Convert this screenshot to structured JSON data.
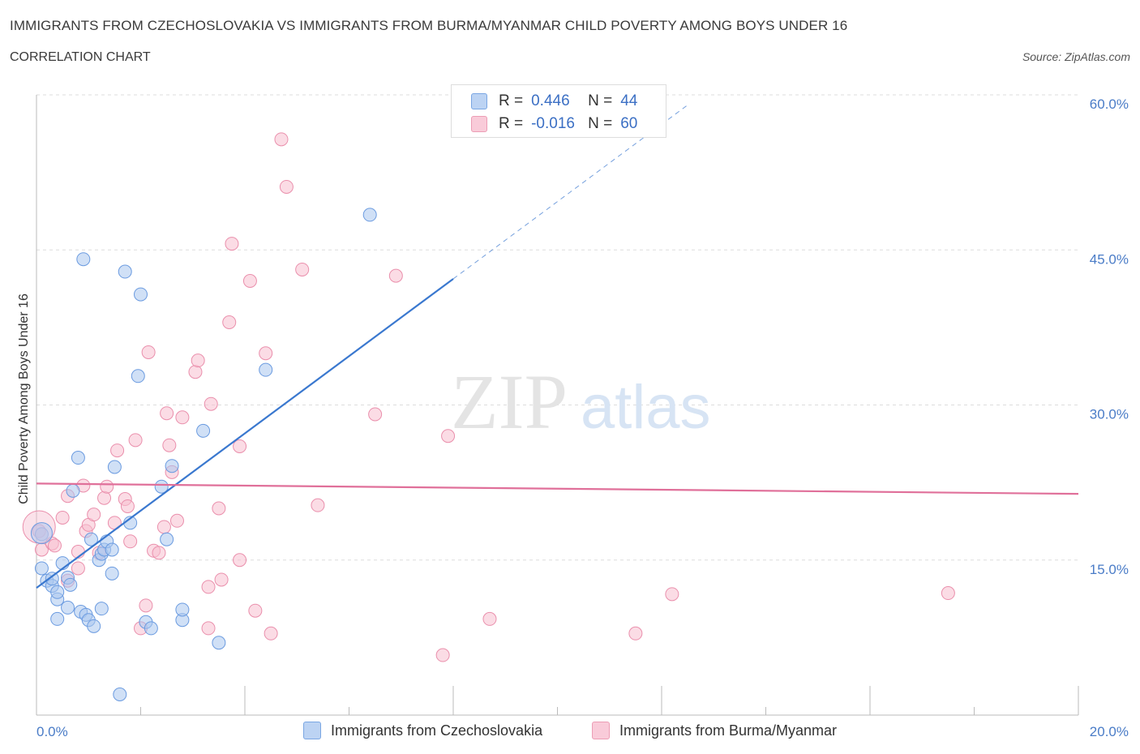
{
  "header": {
    "title": "IMMIGRANTS FROM CZECHOSLOVAKIA VS IMMIGRANTS FROM BURMA/MYANMAR CHILD POVERTY AMONG BOYS UNDER 16",
    "subtitle": "CORRELATION CHART",
    "source": "Source: ZipAtlas.com"
  },
  "legend": {
    "rows": [
      {
        "r_label": "R =",
        "r_value": "0.446",
        "n_label": "N =",
        "n_value": "44"
      },
      {
        "r_label": "R =",
        "r_value": "-0.016",
        "n_label": "N =",
        "n_value": "60"
      }
    ]
  },
  "bottom_legend": {
    "series1": "Immigrants from Czechoslovakia",
    "series2": "Immigrants from Burma/Myanmar"
  },
  "colors": {
    "blue_fill": "#a9c6ef",
    "blue_stroke": "#6b9be0",
    "blue_line": "#3a78cf",
    "pink_fill": "#f7bfd0",
    "pink_stroke": "#ea8fac",
    "pink_line": "#e0709a",
    "grid": "#dddddd",
    "tick_label": "#4a7cc7"
  },
  "watermark": {
    "zip": "ZIP",
    "atlas": "atlas"
  },
  "chart_data": {
    "type": "scatter",
    "ylabel": "Child Poverty Among Boys Under 16",
    "xlim": [
      0,
      20
    ],
    "ylim": [
      0,
      60
    ],
    "x_tick_labels": [
      {
        "v": 0,
        "t": "0.0%"
      },
      {
        "v": 20,
        "t": "20.0%"
      }
    ],
    "y_tick_labels": [
      {
        "v": 15,
        "t": "15.0%"
      },
      {
        "v": 30,
        "t": "30.0%"
      },
      {
        "v": 45,
        "t": "45.0%"
      },
      {
        "v": 60,
        "t": "60.0%"
      }
    ],
    "series": [
      {
        "name": "Immigrants from Czechoslovakia",
        "trend": {
          "x": [
            0.0,
            8.0
          ],
          "y": [
            12.3,
            42.2
          ],
          "dash_to_x": 12.5
        },
        "points": [
          [
            0.1,
            17.5
          ],
          [
            0.1,
            14.2
          ],
          [
            0.2,
            13.0
          ],
          [
            0.3,
            12.5
          ],
          [
            0.3,
            13.2
          ],
          [
            0.4,
            11.2
          ],
          [
            0.4,
            11.9
          ],
          [
            0.4,
            9.3
          ],
          [
            0.5,
            14.7
          ],
          [
            0.6,
            10.4
          ],
          [
            0.6,
            13.3
          ],
          [
            0.65,
            12.6
          ],
          [
            0.7,
            21.7
          ],
          [
            0.8,
            24.9
          ],
          [
            0.85,
            10.0
          ],
          [
            0.9,
            44.1
          ],
          [
            0.95,
            9.7
          ],
          [
            1.0,
            9.2
          ],
          [
            1.05,
            17.0
          ],
          [
            1.1,
            8.6
          ],
          [
            1.2,
            15.0
          ],
          [
            1.25,
            15.6
          ],
          [
            1.25,
            10.3
          ],
          [
            1.3,
            16.0
          ],
          [
            1.35,
            16.8
          ],
          [
            1.45,
            13.7
          ],
          [
            1.45,
            16.0
          ],
          [
            1.5,
            24.0
          ],
          [
            1.6,
            2.0
          ],
          [
            1.7,
            42.9
          ],
          [
            1.8,
            18.6
          ],
          [
            1.95,
            32.8
          ],
          [
            2.0,
            40.7
          ],
          [
            2.1,
            9.0
          ],
          [
            2.2,
            8.4
          ],
          [
            2.4,
            22.1
          ],
          [
            2.5,
            17.0
          ],
          [
            2.6,
            24.1
          ],
          [
            2.8,
            9.2
          ],
          [
            2.8,
            10.2
          ],
          [
            3.2,
            27.5
          ],
          [
            3.5,
            7.0
          ],
          [
            4.4,
            33.4
          ],
          [
            6.4,
            48.4
          ]
        ]
      },
      {
        "name": "Immigrants from Burma/Myanmar",
        "trend": {
          "x": [
            0.0,
            20.0
          ],
          "y": [
            22.4,
            21.4
          ]
        },
        "points": [
          [
            0.05,
            17.8
          ],
          [
            0.1,
            16.0
          ],
          [
            0.3,
            16.6
          ],
          [
            0.35,
            16.4
          ],
          [
            0.5,
            19.1
          ],
          [
            0.6,
            13.0
          ],
          [
            0.6,
            21.2
          ],
          [
            0.8,
            15.8
          ],
          [
            0.8,
            14.2
          ],
          [
            0.9,
            22.2
          ],
          [
            0.95,
            17.8
          ],
          [
            1.0,
            18.4
          ],
          [
            1.1,
            19.4
          ],
          [
            1.2,
            15.7
          ],
          [
            1.3,
            21.0
          ],
          [
            1.35,
            22.1
          ],
          [
            1.5,
            18.6
          ],
          [
            1.55,
            25.6
          ],
          [
            1.7,
            20.9
          ],
          [
            1.75,
            20.2
          ],
          [
            1.8,
            16.8
          ],
          [
            1.9,
            26.6
          ],
          [
            2.0,
            8.4
          ],
          [
            2.1,
            10.6
          ],
          [
            2.15,
            35.1
          ],
          [
            2.25,
            15.9
          ],
          [
            2.35,
            15.7
          ],
          [
            2.45,
            18.2
          ],
          [
            2.5,
            29.2
          ],
          [
            2.55,
            26.1
          ],
          [
            2.6,
            23.5
          ],
          [
            2.7,
            18.8
          ],
          [
            2.8,
            28.8
          ],
          [
            3.05,
            33.2
          ],
          [
            3.1,
            34.3
          ],
          [
            3.3,
            8.4
          ],
          [
            3.3,
            12.4
          ],
          [
            3.35,
            30.1
          ],
          [
            3.5,
            20.0
          ],
          [
            3.55,
            13.1
          ],
          [
            3.7,
            38.0
          ],
          [
            3.75,
            45.6
          ],
          [
            3.9,
            26.0
          ],
          [
            3.9,
            15.0
          ],
          [
            4.1,
            42.0
          ],
          [
            4.2,
            10.1
          ],
          [
            4.4,
            35.0
          ],
          [
            4.5,
            7.9
          ],
          [
            4.7,
            55.7
          ],
          [
            4.8,
            51.1
          ],
          [
            5.1,
            43.1
          ],
          [
            5.4,
            20.3
          ],
          [
            6.5,
            29.1
          ],
          [
            6.9,
            42.5
          ],
          [
            7.8,
            5.8
          ],
          [
            7.9,
            27.0
          ],
          [
            8.7,
            9.3
          ],
          [
            11.5,
            7.9
          ],
          [
            12.2,
            11.7
          ],
          [
            17.5,
            11.8
          ]
        ]
      }
    ]
  }
}
